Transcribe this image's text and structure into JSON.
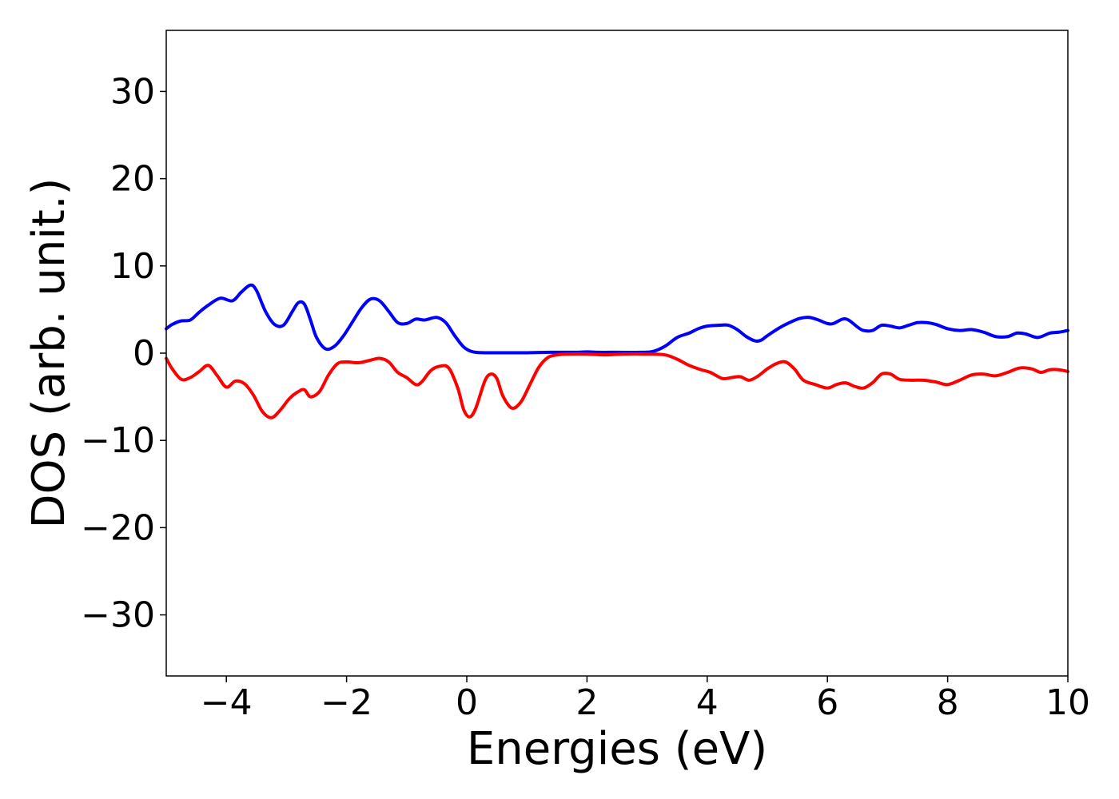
{
  "chart_data": {
    "type": "line",
    "title": "",
    "xlabel": "Energies (eV)",
    "ylabel": "DOS (arb. unit.)",
    "xlim": [
      -5,
      10
    ],
    "ylim": [
      -37,
      37
    ],
    "xticks": [
      -4,
      -2,
      0,
      2,
      4,
      6,
      8,
      10
    ],
    "yticks": [
      -30,
      -20,
      -10,
      0,
      10,
      20,
      30
    ],
    "xtick_labels": [
      "−4",
      "−2",
      "0",
      "2",
      "4",
      "6",
      "8",
      "10"
    ],
    "ytick_labels": [
      "−30",
      "−20",
      "−10",
      "0",
      "10",
      "20",
      "30"
    ],
    "grid": false,
    "legend": "none",
    "series": [
      {
        "color": "#0000ff",
        "x": [
          -5.0,
          -4.9,
          -4.75,
          -4.6,
          -4.45,
          -4.3,
          -4.1,
          -3.9,
          -3.75,
          -3.6,
          -3.5,
          -3.35,
          -3.2,
          -3.05,
          -2.9,
          -2.8,
          -2.7,
          -2.6,
          -2.5,
          -2.35,
          -2.2,
          -2.05,
          -1.9,
          -1.75,
          -1.6,
          -1.45,
          -1.3,
          -1.15,
          -1.0,
          -0.85,
          -0.7,
          -0.5,
          -0.35,
          -0.2,
          -0.05,
          0.1,
          0.3,
          0.6,
          1.0,
          1.4,
          1.8,
          2.0,
          2.2,
          2.5,
          2.9,
          3.1,
          3.3,
          3.5,
          3.7,
          3.85,
          4.0,
          4.2,
          4.35,
          4.5,
          4.65,
          4.8,
          4.9,
          5.0,
          5.2,
          5.4,
          5.55,
          5.7,
          5.85,
          6.0,
          6.1,
          6.25,
          6.35,
          6.5,
          6.6,
          6.75,
          6.9,
          7.05,
          7.2,
          7.35,
          7.5,
          7.65,
          7.8,
          8.0,
          8.2,
          8.4,
          8.6,
          8.8,
          9.0,
          9.15,
          9.3,
          9.5,
          9.7,
          9.85,
          10.0
        ],
        "y": [
          2.8,
          3.3,
          3.7,
          3.8,
          4.7,
          5.5,
          6.3,
          6.0,
          7.0,
          7.8,
          7.2,
          4.8,
          3.3,
          3.2,
          4.8,
          5.8,
          5.6,
          3.8,
          1.8,
          0.5,
          0.8,
          2.0,
          3.6,
          5.2,
          6.2,
          6.0,
          4.8,
          3.5,
          3.4,
          3.9,
          3.8,
          4.1,
          3.5,
          2.0,
          0.7,
          0.15,
          0.05,
          0.05,
          0.05,
          0.1,
          0.1,
          0.15,
          0.1,
          0.1,
          0.1,
          0.2,
          0.8,
          1.8,
          2.3,
          2.8,
          3.1,
          3.2,
          3.2,
          2.7,
          1.9,
          1.4,
          1.5,
          2.0,
          2.9,
          3.6,
          4.0,
          4.1,
          3.8,
          3.4,
          3.4,
          3.9,
          3.8,
          3.0,
          2.6,
          2.6,
          3.2,
          3.1,
          2.9,
          3.2,
          3.5,
          3.5,
          3.3,
          2.8,
          2.6,
          2.7,
          2.4,
          1.9,
          1.9,
          2.3,
          2.2,
          1.8,
          2.3,
          2.4,
          2.6
        ]
      },
      {
        "color": "#ff0000",
        "x": [
          -5.0,
          -4.9,
          -4.75,
          -4.6,
          -4.45,
          -4.3,
          -4.15,
          -4.0,
          -3.85,
          -3.7,
          -3.55,
          -3.4,
          -3.25,
          -3.1,
          -2.95,
          -2.8,
          -2.7,
          -2.6,
          -2.45,
          -2.3,
          -2.15,
          -2.0,
          -1.8,
          -1.6,
          -1.45,
          -1.3,
          -1.15,
          -1.0,
          -0.85,
          -0.75,
          -0.6,
          -0.45,
          -0.3,
          -0.15,
          -0.05,
          0.05,
          0.15,
          0.3,
          0.4,
          0.5,
          0.6,
          0.75,
          0.9,
          1.05,
          1.2,
          1.35,
          1.5,
          1.7,
          2.0,
          2.3,
          2.6,
          3.0,
          3.3,
          3.5,
          3.7,
          3.9,
          4.05,
          4.25,
          4.4,
          4.55,
          4.7,
          4.85,
          5.0,
          5.15,
          5.3,
          5.45,
          5.6,
          5.8,
          6.0,
          6.15,
          6.3,
          6.45,
          6.6,
          6.75,
          6.9,
          7.05,
          7.2,
          7.4,
          7.6,
          7.8,
          8.0,
          8.2,
          8.4,
          8.6,
          8.8,
          9.0,
          9.2,
          9.4,
          9.55,
          9.7,
          9.85,
          10.0
        ],
        "y": [
          -0.6,
          -1.8,
          -3.0,
          -2.8,
          -2.1,
          -1.4,
          -2.6,
          -3.9,
          -3.2,
          -3.5,
          -4.8,
          -6.7,
          -7.4,
          -6.5,
          -5.2,
          -4.4,
          -4.2,
          -5.0,
          -4.4,
          -2.5,
          -1.2,
          -1.0,
          -1.1,
          -0.8,
          -0.6,
          -1.0,
          -2.2,
          -2.8,
          -3.6,
          -3.3,
          -2.0,
          -1.5,
          -1.7,
          -4.0,
          -6.5,
          -7.3,
          -6.3,
          -3.2,
          -2.4,
          -2.9,
          -4.9,
          -6.3,
          -5.6,
          -3.6,
          -1.6,
          -0.5,
          -0.2,
          -0.1,
          -0.1,
          -0.2,
          -0.1,
          -0.1,
          -0.2,
          -0.7,
          -1.4,
          -1.9,
          -2.2,
          -2.9,
          -2.8,
          -2.7,
          -3.1,
          -2.6,
          -1.8,
          -1.2,
          -1.0,
          -1.8,
          -3.1,
          -3.6,
          -4.0,
          -3.6,
          -3.4,
          -3.8,
          -4.0,
          -3.4,
          -2.4,
          -2.4,
          -3.0,
          -3.1,
          -3.1,
          -3.3,
          -3.6,
          -3.1,
          -2.5,
          -2.4,
          -2.6,
          -2.2,
          -1.7,
          -1.8,
          -2.2,
          -1.9,
          -1.9,
          -2.1
        ]
      }
    ]
  }
}
